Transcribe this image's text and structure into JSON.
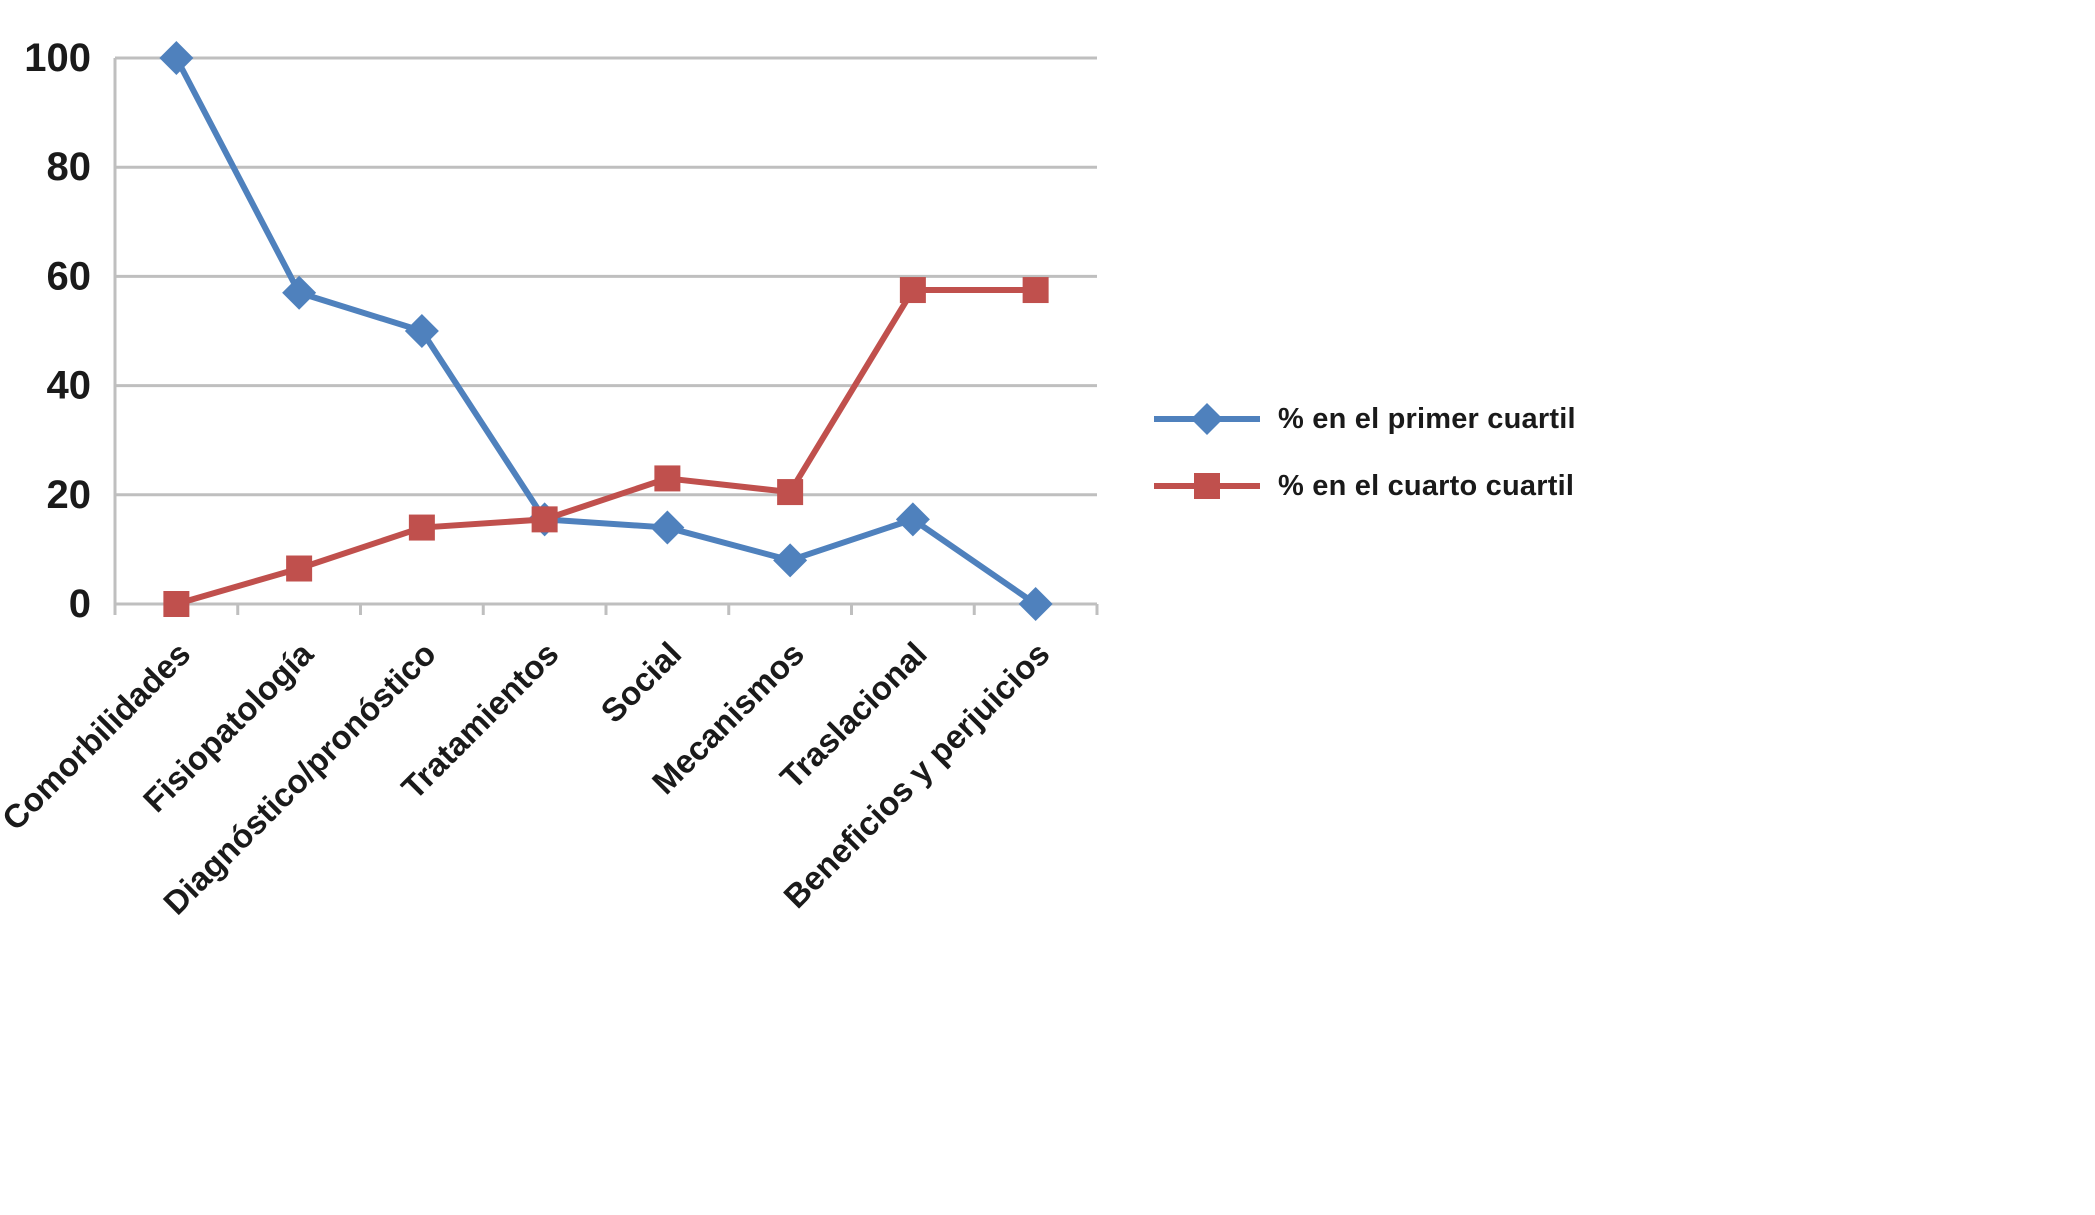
{
  "chart_data": {
    "type": "line",
    "title": "",
    "categories": [
      "Comorbilidades",
      "Fisiopatología",
      "Diagnóstico/pronóstico",
      "Tratamientos",
      "Social",
      "Mecanismos",
      "Traslacional",
      "Beneficios y perjuicios"
    ],
    "series": [
      {
        "name": "% en el primer cuartil",
        "marker": "diamond",
        "color": "#4F81BD",
        "values": [
          100,
          57,
          50,
          15.5,
          14,
          8,
          15.5,
          0
        ]
      },
      {
        "name": "% en el cuarto cuartil",
        "marker": "square",
        "color": "#C0504D",
        "values": [
          0,
          6.5,
          14,
          15.5,
          23,
          20.5,
          57.5,
          57.5
        ]
      }
    ],
    "xlabel": "",
    "ylabel": "",
    "ylim": [
      0,
      100
    ],
    "yticks": [
      0,
      20,
      40,
      60,
      80,
      100
    ],
    "grid": "horizontal",
    "gridline_color": "#BFBFBF",
    "axis_color": "#BFBFBF",
    "text_color": "#1a1a1a",
    "legend_position": "right"
  }
}
